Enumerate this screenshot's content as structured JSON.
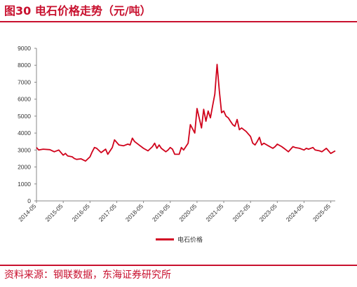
{
  "header": {
    "title": "图30  电石价格走势（元/吨）"
  },
  "footer": {
    "source": "资料来源：钢联数据，东海证券研究所"
  },
  "colors": {
    "accent": "#c8102e",
    "line": "#d0021b"
  },
  "chart_data": {
    "type": "line",
    "title": "",
    "xlabel": "",
    "ylabel": "",
    "ylim": [
      0,
      9000
    ],
    "yticks": [
      0,
      1000,
      2000,
      3000,
      4000,
      5000,
      6000,
      7000,
      8000,
      9000
    ],
    "xticks": [
      "2014-05",
      "2015-05",
      "2016-05",
      "2017-05",
      "2018-05",
      "2019-05",
      "2020-05",
      "2021-05",
      "2022-05",
      "2023-05",
      "2024-05",
      "2025-05"
    ],
    "xrange": [
      "2014-05",
      "2025-07"
    ],
    "grid": false,
    "legend": "bottom-center",
    "series": [
      {
        "name": "电石价格",
        "color": "#d0021b",
        "x": [
          "2014-05",
          "2014-06",
          "2014-08",
          "2014-11",
          "2015-01",
          "2015-03",
          "2015-05",
          "2015-06",
          "2015-07",
          "2015-09",
          "2015-10",
          "2015-11",
          "2016-01",
          "2016-03",
          "2016-05",
          "2016-06",
          "2016-07",
          "2016-08",
          "2016-10",
          "2016-12",
          "2017-01",
          "2017-03",
          "2017-04",
          "2017-06",
          "2017-08",
          "2017-10",
          "2017-11",
          "2017-12",
          "2018-01",
          "2018-03",
          "2018-05",
          "2018-07",
          "2018-09",
          "2018-10",
          "2018-11",
          "2018-12",
          "2019-01",
          "2019-03",
          "2019-04",
          "2019-05",
          "2019-06",
          "2019-07",
          "2019-09",
          "2019-10",
          "2019-11",
          "2020-01",
          "2020-02",
          "2020-04",
          "2020-05",
          "2020-07",
          "2020-08",
          "2020-09",
          "2020-10",
          "2020-11",
          "2020-12",
          "2021-01",
          "2021-02",
          "2021-03",
          "2021-04",
          "2021-05",
          "2021-06",
          "2021-07",
          "2021-08",
          "2021-09",
          "2021-10",
          "2021-11",
          "2021-12",
          "2022-01",
          "2022-02",
          "2022-03",
          "2022-05",
          "2022-06",
          "2022-07",
          "2022-08",
          "2022-09",
          "2022-10",
          "2022-11",
          "2023-01",
          "2023-03",
          "2023-04",
          "2023-05",
          "2023-07",
          "2023-08",
          "2023-09",
          "2023-10",
          "2023-12",
          "2024-01",
          "2024-03",
          "2024-05",
          "2024-06",
          "2024-07",
          "2024-09",
          "2024-10",
          "2024-12",
          "2025-01",
          "2025-03",
          "2025-05",
          "2025-07"
        ],
        "values": [
          3150,
          3000,
          3050,
          3020,
          2900,
          3000,
          2700,
          2800,
          2650,
          2600,
          2500,
          2450,
          2480,
          2350,
          2600,
          2900,
          3150,
          3100,
          2850,
          3050,
          2750,
          3150,
          3600,
          3300,
          3250,
          3350,
          3300,
          3700,
          3500,
          3300,
          3100,
          2950,
          3200,
          3400,
          3100,
          3300,
          3100,
          2900,
          3000,
          3150,
          3050,
          2750,
          2750,
          3150,
          3000,
          3400,
          4500,
          4000,
          5450,
          4300,
          5400,
          4700,
          5300,
          4900,
          5600,
          6300,
          8050,
          6500,
          5200,
          5300,
          5000,
          4900,
          4700,
          4500,
          4400,
          4800,
          4200,
          4300,
          4200,
          4100,
          3800,
          3400,
          3300,
          3500,
          3750,
          3300,
          3400,
          3250,
          3100,
          3200,
          3350,
          3200,
          3100,
          3000,
          2900,
          3200,
          3150,
          3100,
          3000,
          3100,
          3050,
          3150,
          3000,
          2950,
          2900,
          3100,
          2800,
          2950
        ]
      }
    ]
  }
}
